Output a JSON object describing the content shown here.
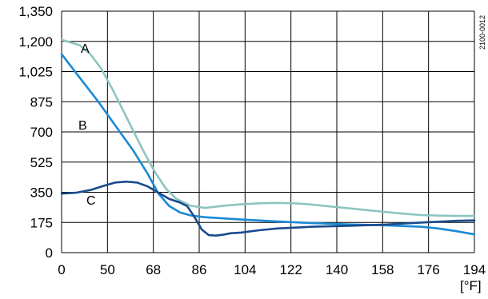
{
  "chart_data": {
    "type": "line",
    "title": "",
    "xlabel": "",
    "ylabel": "",
    "x_unit_label": "[°F]",
    "reference_code": "2100-0012",
    "x_tick_labels": [
      "0",
      "50",
      "68",
      "86",
      "104",
      "122",
      "140",
      "158",
      "176",
      "194"
    ],
    "y_tick_labels": [
      "1,350",
      "1,200",
      "1,025",
      "875",
      "700",
      "525",
      "350",
      "175",
      "0"
    ],
    "y_tick_values": [
      1350,
      1200,
      1025,
      875,
      700,
      525,
      350,
      175,
      0
    ],
    "grid": true,
    "series": [
      {
        "name": "A",
        "color": "#8cc5bf",
        "points": [
          [
            0,
            1190
          ],
          [
            5,
            1160
          ],
          [
            8,
            1110
          ],
          [
            11,
            1030
          ],
          [
            14,
            920
          ],
          [
            17,
            800
          ],
          [
            20,
            680
          ],
          [
            23,
            560
          ],
          [
            26,
            450
          ],
          [
            29,
            360
          ],
          [
            32,
            300
          ],
          [
            36,
            262
          ],
          [
            40,
            250
          ],
          [
            45,
            262
          ],
          [
            50,
            270
          ],
          [
            55,
            276
          ],
          [
            60,
            278
          ],
          [
            65,
            276
          ],
          [
            70,
            268
          ],
          [
            75,
            258
          ],
          [
            80,
            248
          ],
          [
            85,
            238
          ],
          [
            90,
            228
          ],
          [
            95,
            218
          ],
          [
            100,
            210
          ],
          [
            105,
            207
          ],
          [
            110,
            205
          ],
          [
            115,
            205
          ]
        ]
      },
      {
        "name": "B",
        "color": "#1a8ad4",
        "points": [
          [
            0,
            1110
          ],
          [
            5,
            980
          ],
          [
            10,
            850
          ],
          [
            15,
            710
          ],
          [
            20,
            570
          ],
          [
            24,
            440
          ],
          [
            27,
            330
          ],
          [
            30,
            260
          ],
          [
            33,
            225
          ],
          [
            36,
            208
          ],
          [
            40,
            198
          ],
          [
            50,
            185
          ],
          [
            60,
            175
          ],
          [
            70,
            165
          ],
          [
            80,
            158
          ],
          [
            90,
            153
          ],
          [
            100,
            145
          ],
          [
            105,
            135
          ],
          [
            110,
            120
          ],
          [
            115,
            102
          ]
        ]
      },
      {
        "name": "C",
        "color": "#1a4b8c",
        "points": [
          [
            0,
            330
          ],
          [
            4,
            335
          ],
          [
            8,
            350
          ],
          [
            12,
            375
          ],
          [
            15,
            392
          ],
          [
            18,
            397
          ],
          [
            21,
            392
          ],
          [
            24,
            370
          ],
          [
            27,
            335
          ],
          [
            30,
            300
          ],
          [
            33,
            280
          ],
          [
            35,
            260
          ],
          [
            37,
            200
          ],
          [
            39,
            130
          ],
          [
            41,
            98
          ],
          [
            43,
            95
          ],
          [
            45,
            100
          ],
          [
            47,
            108
          ],
          [
            50,
            112
          ],
          [
            55,
            125
          ],
          [
            60,
            135
          ],
          [
            70,
            145
          ],
          [
            80,
            150
          ],
          [
            90,
            157
          ],
          [
            100,
            168
          ],
          [
            110,
            178
          ],
          [
            115,
            180
          ]
        ]
      }
    ]
  }
}
